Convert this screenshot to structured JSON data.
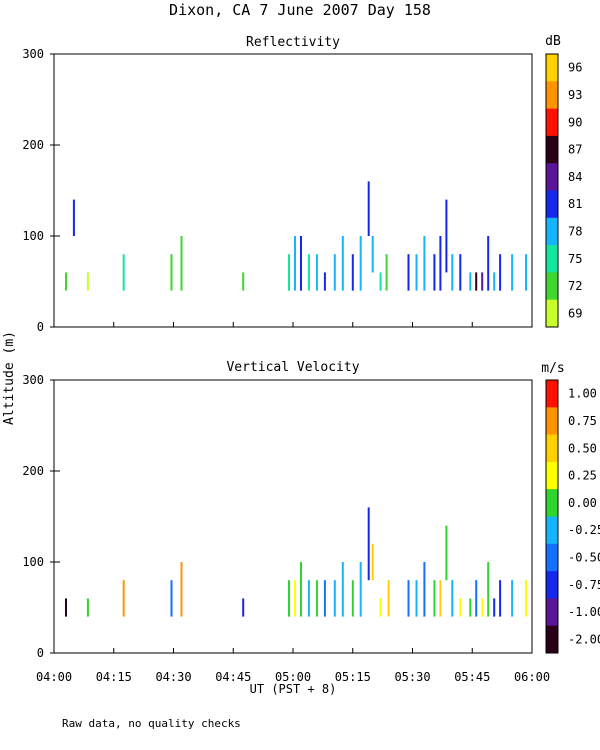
{
  "title": "Dixon, CA  7 June 2007  Day 158",
  "footer_note": "Raw data, no quality checks",
  "shared_ylabel": "Altitude (m)",
  "chart_data": [
    {
      "type": "heatmap",
      "title": "Reflectivity",
      "colorbar_unit": "dB",
      "colorbar_ticks": [
        "96",
        "93",
        "90",
        "87",
        "84",
        "81",
        "78",
        "75",
        "72",
        "69"
      ],
      "colorbar_colors": [
        "#ffd000",
        "#ff9400",
        "#ff1000",
        "#2a0018",
        "#5a1499",
        "#1427ea",
        "#14b4ff",
        "#14e6a0",
        "#3fd62e",
        "#c8ff2a"
      ],
      "xlabel": "UT  (PST + 8)",
      "ylabel": "Altitude (m)",
      "ylim": [
        0,
        300
      ],
      "yticks": [
        "300",
        "200",
        "100",
        "0"
      ],
      "xticks": [
        "04:00",
        "04:15",
        "04:30",
        "04:45",
        "05:00",
        "05:15",
        "05:30",
        "05:45",
        "06:00"
      ],
      "x_range_minutes_after_0400": [
        0,
        120
      ],
      "samples": [
        {
          "t": 3.0,
          "y0": 40,
          "y1": 60,
          "c": "#3fd62e"
        },
        {
          "t": 5.0,
          "y0": 100,
          "y1": 140,
          "c": "#1427ea"
        },
        {
          "t": 8.5,
          "y0": 40,
          "y1": 60,
          "c": "#c8ff2a"
        },
        {
          "t": 17.5,
          "y0": 40,
          "y1": 80,
          "c": "#14e6a0"
        },
        {
          "t": 29.5,
          "y0": 40,
          "y1": 80,
          "c": "#3fd62e"
        },
        {
          "t": 32.0,
          "y0": 40,
          "y1": 100,
          "c": "#3fd62e"
        },
        {
          "t": 47.5,
          "y0": 40,
          "y1": 60,
          "c": "#3fd62e"
        },
        {
          "t": 59.0,
          "y0": 40,
          "y1": 80,
          "c": "#14e6a0"
        },
        {
          "t": 60.5,
          "y0": 40,
          "y1": 100,
          "c": "#14b4ff"
        },
        {
          "t": 62.0,
          "y0": 40,
          "y1": 100,
          "c": "#1427ea"
        },
        {
          "t": 64.0,
          "y0": 40,
          "y1": 80,
          "c": "#14e6a0"
        },
        {
          "t": 66.0,
          "y0": 40,
          "y1": 80,
          "c": "#14b4ff"
        },
        {
          "t": 68.0,
          "y0": 40,
          "y1": 60,
          "c": "#1427ea"
        },
        {
          "t": 70.5,
          "y0": 40,
          "y1": 80,
          "c": "#14b4ff"
        },
        {
          "t": 72.5,
          "y0": 40,
          "y1": 100,
          "c": "#14b4ff"
        },
        {
          "t": 75.0,
          "y0": 40,
          "y1": 80,
          "c": "#1427ea"
        },
        {
          "t": 77.0,
          "y0": 40,
          "y1": 100,
          "c": "#14b4ff"
        },
        {
          "t": 79.0,
          "y0": 100,
          "y1": 160,
          "c": "#1427ea"
        },
        {
          "t": 80.0,
          "y0": 60,
          "y1": 100,
          "c": "#14b4ff"
        },
        {
          "t": 82.0,
          "y0": 40,
          "y1": 60,
          "c": "#14e6a0"
        },
        {
          "t": 83.5,
          "y0": 40,
          "y1": 80,
          "c": "#3fd62e"
        },
        {
          "t": 89.0,
          "y0": 40,
          "y1": 80,
          "c": "#1427ea"
        },
        {
          "t": 91.0,
          "y0": 40,
          "y1": 80,
          "c": "#14b4ff"
        },
        {
          "t": 93.0,
          "y0": 40,
          "y1": 100,
          "c": "#14b4ff"
        },
        {
          "t": 95.5,
          "y0": 40,
          "y1": 80,
          "c": "#1427ea"
        },
        {
          "t": 97.0,
          "y0": 40,
          "y1": 100,
          "c": "#1427ea"
        },
        {
          "t": 98.5,
          "y0": 60,
          "y1": 140,
          "c": "#1427ea"
        },
        {
          "t": 100.0,
          "y0": 40,
          "y1": 80,
          "c": "#14b4ff"
        },
        {
          "t": 102.0,
          "y0": 40,
          "y1": 80,
          "c": "#1427ea"
        },
        {
          "t": 104.5,
          "y0": 40,
          "y1": 60,
          "c": "#14b4ff"
        },
        {
          "t": 106.0,
          "y0": 40,
          "y1": 60,
          "c": "#2a0018"
        },
        {
          "t": 107.5,
          "y0": 40,
          "y1": 60,
          "c": "#5a1499"
        },
        {
          "t": 109.0,
          "y0": 40,
          "y1": 100,
          "c": "#1427ea"
        },
        {
          "t": 110.5,
          "y0": 40,
          "y1": 60,
          "c": "#14b4ff"
        },
        {
          "t": 112.0,
          "y0": 40,
          "y1": 80,
          "c": "#1427ea"
        },
        {
          "t": 115.0,
          "y0": 40,
          "y1": 80,
          "c": "#14b4ff"
        },
        {
          "t": 118.5,
          "y0": 40,
          "y1": 80,
          "c": "#14b4ff"
        }
      ]
    },
    {
      "type": "heatmap",
      "title": "Vertical Velocity",
      "colorbar_unit": "m/s",
      "colorbar_ticks": [
        "1.00",
        "0.75",
        "0.50",
        "0.25",
        "0.00",
        "-0.25",
        "-0.50",
        "-0.75",
        "-1.00",
        "-2.00"
      ],
      "colorbar_colors": [
        "#ff1000",
        "#ff9400",
        "#ffd000",
        "#ffff00",
        "#2ed62e",
        "#14b4ff",
        "#1470ff",
        "#1427ea",
        "#5a1499",
        "#2a0018"
      ],
      "xlabel": "UT  (PST + 8)",
      "ylabel": "Altitude (m)",
      "ylim": [
        0,
        300
      ],
      "yticks": [
        "300",
        "200",
        "100",
        "0"
      ],
      "xticks": [
        "04:00",
        "04:15",
        "04:30",
        "04:45",
        "05:00",
        "05:15",
        "05:30",
        "05:45",
        "06:00"
      ],
      "x_range_minutes_after_0400": [
        0,
        120
      ],
      "samples": [
        {
          "t": 3.0,
          "y0": 40,
          "y1": 60,
          "c": "#2a0018"
        },
        {
          "t": 8.5,
          "y0": 40,
          "y1": 60,
          "c": "#2ed62e"
        },
        {
          "t": 17.5,
          "y0": 40,
          "y1": 80,
          "c": "#ff9400"
        },
        {
          "t": 29.5,
          "y0": 40,
          "y1": 80,
          "c": "#1470ff"
        },
        {
          "t": 32.0,
          "y0": 40,
          "y1": 100,
          "c": "#ff9400"
        },
        {
          "t": 47.5,
          "y0": 40,
          "y1": 60,
          "c": "#1427ea"
        },
        {
          "t": 59.0,
          "y0": 40,
          "y1": 80,
          "c": "#2ed62e"
        },
        {
          "t": 60.5,
          "y0": 40,
          "y1": 80,
          "c": "#ffff00"
        },
        {
          "t": 62.0,
          "y0": 40,
          "y1": 100,
          "c": "#2ed62e"
        },
        {
          "t": 64.0,
          "y0": 40,
          "y1": 80,
          "c": "#14b4ff"
        },
        {
          "t": 66.0,
          "y0": 40,
          "y1": 80,
          "c": "#2ed62e"
        },
        {
          "t": 68.0,
          "y0": 40,
          "y1": 80,
          "c": "#1470ff"
        },
        {
          "t": 70.5,
          "y0": 40,
          "y1": 80,
          "c": "#14b4ff"
        },
        {
          "t": 72.5,
          "y0": 40,
          "y1": 100,
          "c": "#14b4ff"
        },
        {
          "t": 75.0,
          "y0": 40,
          "y1": 80,
          "c": "#2ed62e"
        },
        {
          "t": 77.0,
          "y0": 40,
          "y1": 100,
          "c": "#14b4ff"
        },
        {
          "t": 79.0,
          "y0": 80,
          "y1": 160,
          "c": "#1427ea"
        },
        {
          "t": 80.0,
          "y0": 80,
          "y1": 120,
          "c": "#ffd000"
        },
        {
          "t": 82.0,
          "y0": 40,
          "y1": 60,
          "c": "#ffff00"
        },
        {
          "t": 84.0,
          "y0": 40,
          "y1": 80,
          "c": "#ffd000"
        },
        {
          "t": 89.0,
          "y0": 40,
          "y1": 80,
          "c": "#1470ff"
        },
        {
          "t": 91.0,
          "y0": 40,
          "y1": 80,
          "c": "#14b4ff"
        },
        {
          "t": 93.0,
          "y0": 40,
          "y1": 100,
          "c": "#1470ff"
        },
        {
          "t": 95.5,
          "y0": 40,
          "y1": 80,
          "c": "#2ed62e"
        },
        {
          "t": 97.0,
          "y0": 40,
          "y1": 80,
          "c": "#ffd000"
        },
        {
          "t": 98.5,
          "y0": 80,
          "y1": 140,
          "c": "#2ed62e"
        },
        {
          "t": 100.0,
          "y0": 40,
          "y1": 80,
          "c": "#14b4ff"
        },
        {
          "t": 102.0,
          "y0": 40,
          "y1": 60,
          "c": "#ffff00"
        },
        {
          "t": 104.5,
          "y0": 40,
          "y1": 60,
          "c": "#2ed62e"
        },
        {
          "t": 106.0,
          "y0": 40,
          "y1": 80,
          "c": "#1470ff"
        },
        {
          "t": 107.5,
          "y0": 40,
          "y1": 60,
          "c": "#ffff00"
        },
        {
          "t": 109.0,
          "y0": 40,
          "y1": 100,
          "c": "#2ed62e"
        },
        {
          "t": 110.5,
          "y0": 40,
          "y1": 60,
          "c": "#1427ea"
        },
        {
          "t": 112.0,
          "y0": 40,
          "y1": 80,
          "c": "#1427ea"
        },
        {
          "t": 115.0,
          "y0": 40,
          "y1": 80,
          "c": "#14b4ff"
        },
        {
          "t": 118.5,
          "y0": 40,
          "y1": 80,
          "c": "#ffff00"
        }
      ]
    }
  ]
}
